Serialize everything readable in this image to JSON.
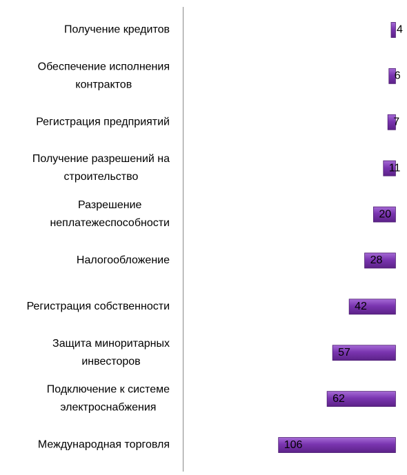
{
  "chart_data": {
    "type": "bar",
    "orientation": "horizontal",
    "x_reversed": true,
    "categories": [
      "Получение кредитов",
      "Обеспечение исполнения\nконтрактов",
      "Регистрация предприятий",
      "Получение разрешений на\nстроительство",
      "Разрешение\nнеплатежеспособности",
      "Налогообложение",
      "Регистрация собственности",
      "Защита миноритарных\nинвесторов",
      "Подключение к системе\nэлектроснабжения",
      "Международная торговля"
    ],
    "values": [
      4,
      6,
      7,
      11,
      20,
      28,
      42,
      57,
      62,
      106
    ],
    "color": "#7a35b0",
    "xlim": [
      0,
      192
    ]
  }
}
